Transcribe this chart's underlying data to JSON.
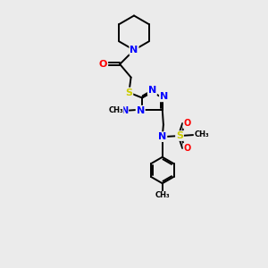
{
  "bg_color": "#ebebeb",
  "black": "#000000",
  "blue": "#0000ff",
  "red": "#ff0000",
  "yellow": "#cccc00",
  "bond_lw": 1.4,
  "figsize": [
    3.0,
    3.0
  ],
  "dpi": 100,
  "xlim": [
    0,
    10
  ],
  "ylim": [
    0,
    13
  ]
}
